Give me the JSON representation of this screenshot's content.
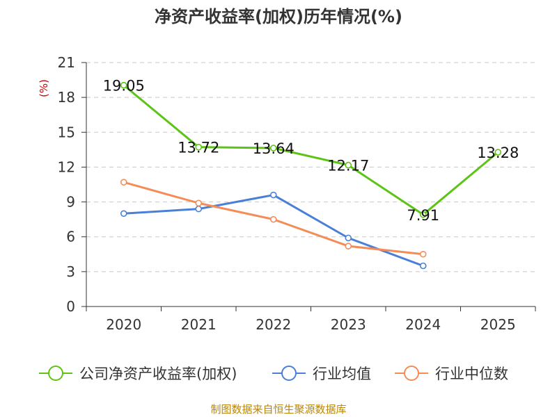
{
  "chart_data": {
    "type": "line",
    "title": "净资产收益率(加权)历年情况(%)",
    "ylabel": "(%)",
    "xlabel": "",
    "categories": [
      "2020",
      "2021",
      "2022",
      "2023",
      "2024",
      "2025"
    ],
    "ylim": [
      0,
      21
    ],
    "yticks": [
      0,
      3,
      6,
      9,
      12,
      15,
      18,
      21
    ],
    "grid": true,
    "legend_position": "bottom",
    "series": [
      {
        "name": "公司净资产收益率(加权)",
        "color": "#5cc414",
        "values": [
          19.05,
          13.72,
          13.64,
          12.17,
          7.91,
          13.28
        ],
        "labels": [
          "19.05",
          "13.72",
          "13.64",
          "12.17",
          "7.91",
          "13.28"
        ]
      },
      {
        "name": "行业均值",
        "color": "#4a7fd8",
        "values": [
          8.0,
          8.4,
          9.6,
          5.9,
          3.5,
          null
        ]
      },
      {
        "name": "行业中位数",
        "color": "#f48c58",
        "values": [
          10.7,
          8.9,
          7.5,
          5.2,
          4.5,
          null
        ]
      }
    ],
    "source": "制图数据来自恒生聚源数据库"
  }
}
